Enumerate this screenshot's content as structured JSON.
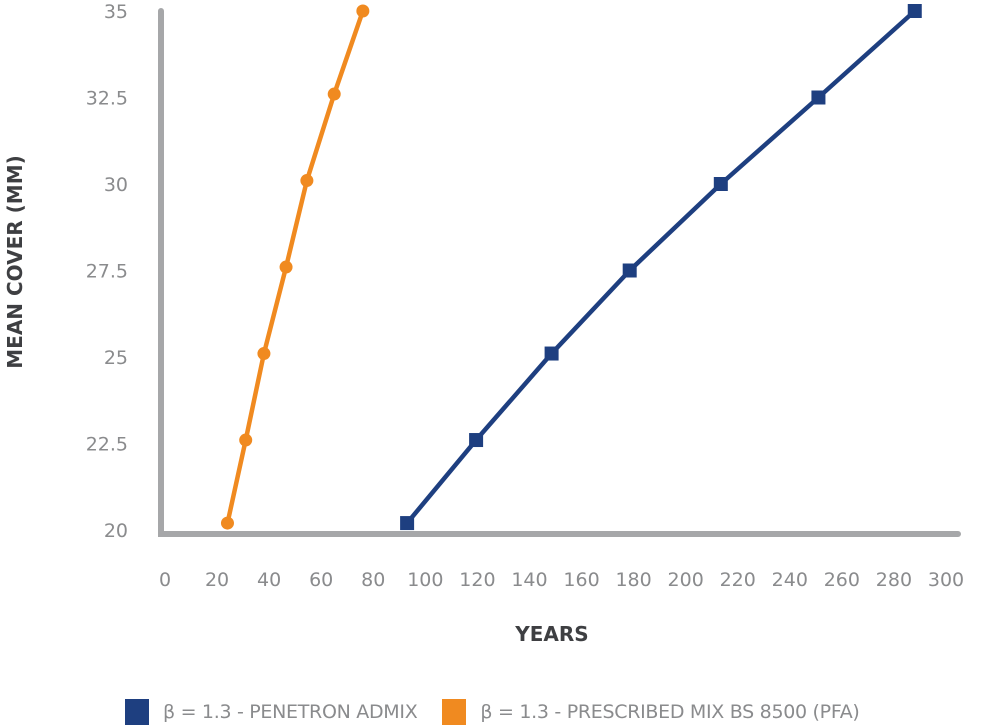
{
  "chart_data": {
    "type": "line",
    "title": "",
    "xlabel": "YEARS",
    "ylabel": "MEAN COVER (MM)",
    "xlim": [
      0,
      300
    ],
    "ylim": [
      20,
      35
    ],
    "x_ticks": [
      "0",
      "20",
      "40",
      "60",
      "80",
      "100",
      "120",
      "140",
      "160",
      "180",
      "200",
      "220",
      "240",
      "260",
      "280",
      "300"
    ],
    "y_ticks": [
      "20",
      "22.5",
      "25",
      "27.5",
      "30",
      "32.5",
      "35"
    ],
    "grid": false,
    "legend_position": "bottom",
    "series": [
      {
        "name": "β = 1.3 - PENETRON ADMIX",
        "color": "#1e3f80",
        "marker": "square",
        "x": [
          93,
          119.5,
          148.5,
          178.5,
          213.5,
          251,
          288
        ],
        "y": [
          20.2,
          22.6,
          25.1,
          27.5,
          30,
          32.5,
          35
        ]
      },
      {
        "name": "β = 1.3 - PRESCRIBED MIX BS 8500 (PFA)",
        "color": "#f08a20",
        "marker": "circle",
        "x": [
          24,
          31,
          38,
          46.5,
          54.5,
          65,
          76
        ],
        "y": [
          20.2,
          22.6,
          25.1,
          27.6,
          30.1,
          32.6,
          35
        ]
      }
    ]
  },
  "legend": {
    "items": [
      {
        "label": "β = 1.3 - PENETRON ADMIX",
        "color": "#1e3f80"
      },
      {
        "label": "β = 1.3 - PRESCRIBED MIX BS 8500 (PFA)",
        "color": "#f08a20"
      }
    ]
  },
  "colors": {
    "axis": "#a6a7a9",
    "tick_text": "#8a8b8d",
    "title_text": "#3e3f42"
  }
}
